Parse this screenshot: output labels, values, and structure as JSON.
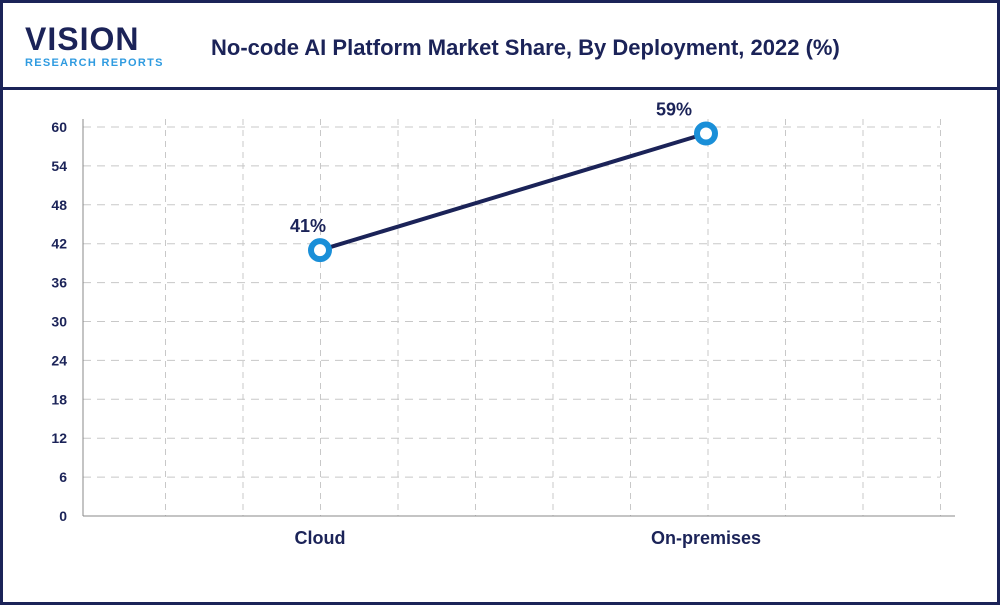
{
  "logo": {
    "main": "VISION",
    "sub": "RESEARCH REPORTS"
  },
  "colors": {
    "line": "#1b2358",
    "marker": "#1a8fd8",
    "border": "#1b2358",
    "grid": "#c8c8c8"
  },
  "chart_data": {
    "type": "line",
    "title": "No-code AI Platform Market Share, By Deployment, 2022 (%)",
    "categories": [
      "Cloud",
      "On-premises"
    ],
    "series": [
      {
        "values": [
          41,
          59
        ]
      }
    ],
    "data_labels": [
      "41%",
      "59%"
    ],
    "yticks": [
      0,
      6,
      12,
      18,
      24,
      30,
      36,
      42,
      48,
      54,
      60
    ],
    "ylim": [
      0,
      60
    ],
    "grid": true,
    "legend": "none"
  }
}
